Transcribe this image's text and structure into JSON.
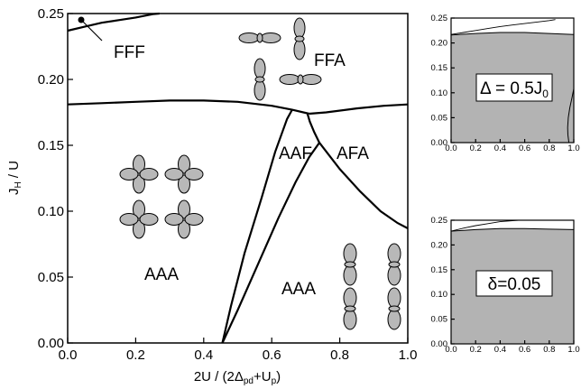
{
  "chart_data": [
    {
      "type": "line",
      "xlabel": "2U / (2Δpd+Up)",
      "xlabel_parts": {
        "main": "2U / (2Δ",
        "sub1": "pd",
        "mid": "+U",
        "sub2": "p",
        "end": ")"
      },
      "ylabel": "JH / U",
      "ylabel_parts": {
        "main": "J",
        "sub": "H",
        "end": " / U"
      },
      "xlim": [
        0.0,
        1.0
      ],
      "ylim": [
        0.0,
        0.25
      ],
      "x_ticks": [
        "0.0",
        "0.2",
        "0.4",
        "0.6",
        "0.8",
        "1.0"
      ],
      "y_ticks": [
        "0.00",
        "0.05",
        "0.10",
        "0.15",
        "0.20",
        "0.25"
      ],
      "grid": false,
      "regions": [
        "FFF",
        "FFA",
        "AAF",
        "AFA",
        "AAA",
        "AAA"
      ],
      "boundaries": [
        {
          "id": "fff-boundary",
          "points": [
            [
              0.0,
              0.237
            ],
            [
              0.05,
              0.24
            ],
            [
              0.1,
              0.243
            ],
            [
              0.15,
              0.245
            ],
            [
              0.2,
              0.247
            ],
            [
              0.25,
              0.2495
            ],
            [
              0.27,
              0.25
            ]
          ]
        },
        {
          "id": "ferro-upper-left",
          "points": [
            [
              0.0,
              0.181
            ],
            [
              0.1,
              0.182
            ],
            [
              0.2,
              0.183
            ],
            [
              0.3,
              0.184
            ],
            [
              0.4,
              0.184
            ],
            [
              0.5,
              0.183
            ],
            [
              0.6,
              0.18
            ],
            [
              0.66,
              0.177
            ],
            [
              0.71,
              0.174
            ]
          ]
        },
        {
          "id": "ferro-upper-right",
          "points": [
            [
              0.71,
              0.174
            ],
            [
              0.76,
              0.175
            ],
            [
              0.85,
              0.178
            ],
            [
              0.93,
              0.18
            ],
            [
              1.0,
              0.181
            ]
          ]
        },
        {
          "id": "aaa-left-border",
          "points": [
            [
              0.455,
              0.0
            ],
            [
              0.48,
              0.028
            ],
            [
              0.52,
              0.068
            ],
            [
              0.57,
              0.11
            ],
            [
              0.61,
              0.145
            ],
            [
              0.645,
              0.17
            ],
            [
              0.66,
              0.177
            ]
          ]
        },
        {
          "id": "aaa-aaf-border",
          "points": [
            [
              0.455,
              0.0
            ],
            [
              0.5,
              0.025
            ],
            [
              0.56,
              0.06
            ],
            [
              0.62,
              0.095
            ],
            [
              0.67,
              0.122
            ],
            [
              0.71,
              0.141
            ],
            [
              0.74,
              0.152
            ]
          ]
        },
        {
          "id": "aaf-afa-upper",
          "points": [
            [
              0.74,
              0.152
            ],
            [
              0.725,
              0.16
            ],
            [
              0.712,
              0.168
            ],
            [
              0.705,
              0.174
            ]
          ]
        },
        {
          "id": "afa-lower",
          "points": [
            [
              0.74,
              0.152
            ],
            [
              0.8,
              0.132
            ],
            [
              0.86,
              0.115
            ],
            [
              0.92,
              0.1
            ],
            [
              0.97,
              0.091
            ],
            [
              1.0,
              0.087
            ]
          ]
        }
      ],
      "annotation_dot": [
        0.04,
        0.245
      ],
      "annotation_line": [
        [
          0.04,
          0.245
        ],
        [
          0.1,
          0.224
        ]
      ]
    },
    {
      "type": "area",
      "label_parts": {
        "pre": "Δ = 0.5J",
        "sub": "0"
      },
      "xlim": [
        0.0,
        1.0
      ],
      "ylim": [
        0.0,
        0.25
      ],
      "x_ticks": [
        "0.0",
        "0.2",
        "0.4",
        "0.6",
        "0.8",
        "1.0"
      ],
      "y_ticks": [
        "0.00",
        "0.05",
        "0.10",
        "0.15",
        "0.20",
        "0.25"
      ],
      "fill_top": [
        [
          0.0,
          0.216
        ],
        [
          0.2,
          0.219
        ],
        [
          0.4,
          0.221
        ],
        [
          0.6,
          0.221
        ],
        [
          0.8,
          0.219
        ],
        [
          1.0,
          0.217
        ]
      ],
      "upper_line": [
        [
          0.0,
          0.217
        ],
        [
          0.1,
          0.221
        ],
        [
          0.2,
          0.225
        ],
        [
          0.3,
          0.229
        ],
        [
          0.4,
          0.233
        ],
        [
          0.5,
          0.236
        ],
        [
          0.6,
          0.239
        ],
        [
          0.7,
          0.242
        ],
        [
          0.8,
          0.245
        ],
        [
          0.85,
          0.247
        ]
      ],
      "edge_curve": [
        [
          1.0,
          0.108
        ],
        [
          0.985,
          0.09
        ],
        [
          0.968,
          0.07
        ],
        [
          0.955,
          0.05
        ],
        [
          0.95,
          0.03
        ],
        [
          0.952,
          0.015
        ],
        [
          0.96,
          0.0
        ]
      ]
    },
    {
      "type": "area",
      "label_parts": {
        "pre": "δ",
        "post": "=0.05"
      },
      "xlim": [
        0.0,
        1.0
      ],
      "ylim": [
        0.0,
        0.25
      ],
      "x_ticks": [
        "0.0",
        "0.2",
        "0.4",
        "0.6",
        "0.8",
        "1.0"
      ],
      "y_ticks": [
        "0.00",
        "0.05",
        "0.10",
        "0.15",
        "0.20",
        "0.25"
      ],
      "fill_top": [
        [
          0.0,
          0.228
        ],
        [
          0.2,
          0.231
        ],
        [
          0.4,
          0.233
        ],
        [
          0.6,
          0.233
        ],
        [
          0.8,
          0.232
        ],
        [
          1.0,
          0.231
        ]
      ],
      "upper_line": [
        [
          0.0,
          0.228
        ],
        [
          0.1,
          0.234
        ],
        [
          0.2,
          0.239
        ],
        [
          0.3,
          0.243
        ],
        [
          0.4,
          0.247
        ],
        [
          0.5,
          0.249
        ],
        [
          0.55,
          0.25
        ]
      ]
    }
  ]
}
